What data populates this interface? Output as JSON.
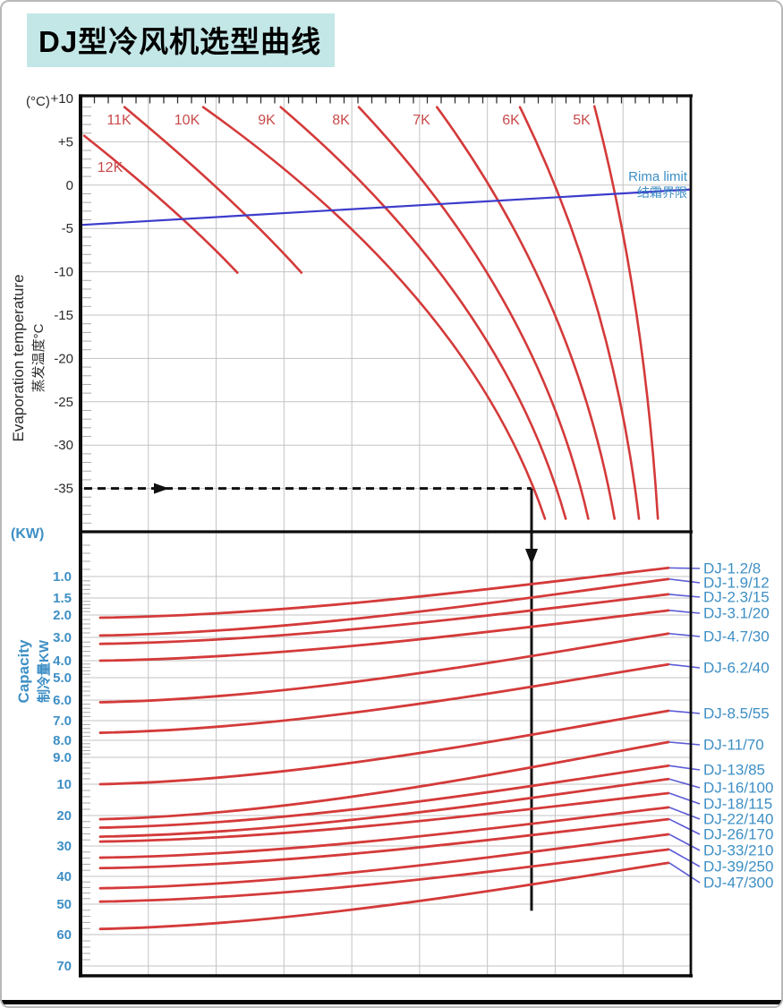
{
  "page": {
    "title": "DJ型冷风机选型曲线"
  },
  "top_chart": {
    "unit_label": "(°C)",
    "axis_label_en": "Evaporation temperature",
    "axis_label_zh": "蒸发温度°C",
    "yticks": [
      "+10",
      "+5",
      "0",
      "-5",
      "-10",
      "-15",
      "-20",
      "-25",
      "-30",
      "-35"
    ],
    "rima_label_en": "Rima limit",
    "rima_label_zh": "结霜界限"
  },
  "bottom_chart": {
    "unit_label": "(KW)",
    "axis_label_en": "Capacity",
    "axis_label_zh": "制冷量KW",
    "yticks": [
      "1.0",
      "1.5",
      "2.0",
      "3.0",
      "4.0",
      "5.0",
      "6.0",
      "7.0",
      "8.0",
      "9.0",
      "10",
      "20",
      "30",
      "40",
      "50",
      "60",
      "70"
    ]
  },
  "colors": {
    "curve_red": "#d43a3a",
    "curve_label_red": "#c84a4a",
    "limit_blue": "#3c3ccc",
    "leader_blue": "#5b5bd6",
    "label_blue": "#3e8fc5",
    "axis_dark": "#2b2b2b",
    "grid_grey": "#c3c3c3",
    "title_bg": "#c3e7e7"
  },
  "chart_data": [
    {
      "panel": "evaporation-temperature",
      "type": "line",
      "ylabel": "Evaporation temperature 蒸发温度°C",
      "yunit": "°C",
      "ylim": [
        -40,
        10
      ],
      "grid": true,
      "dt_curves": [
        {
          "label": "12K",
          "start": {
            "xf": 0.006,
            "temp": 5.7
          },
          "end": {
            "xf": 0.257,
            "temp": -10.1
          }
        },
        {
          "label": "11K",
          "start": {
            "xf": 0.072,
            "temp": 9.0
          },
          "end": {
            "xf": 0.362,
            "temp": -10.1
          }
        },
        {
          "label": "10K",
          "start": {
            "xf": 0.201,
            "temp": 9.0
          },
          "end": {
            "xf": 0.761,
            "temp": -38.5
          }
        },
        {
          "label": "9K",
          "start": {
            "xf": 0.328,
            "temp": 9.0
          },
          "end": {
            "xf": 0.795,
            "temp": -38.5
          }
        },
        {
          "label": "8K",
          "start": {
            "xf": 0.456,
            "temp": 9.0
          },
          "end": {
            "xf": 0.832,
            "temp": -38.5
          }
        },
        {
          "label": "7K",
          "start": {
            "xf": 0.584,
            "temp": 9.0
          },
          "end": {
            "xf": 0.875,
            "temp": -38.5
          }
        },
        {
          "label": "6K",
          "start": {
            "xf": 0.72,
            "temp": 9.0
          },
          "end": {
            "xf": 0.915,
            "temp": -38.5
          }
        },
        {
          "label": "5K",
          "start": {
            "xf": 0.842,
            "temp": 9.1
          },
          "end": {
            "xf": 0.946,
            "temp": -38.5
          }
        }
      ],
      "rima_limit": {
        "start": {
          "xf": 0.0,
          "temp": -4.6
        },
        "end": {
          "xf": 1.0,
          "temp": -0.5
        }
      },
      "selection_arrow": {
        "temp": -35,
        "turn_xf": 0.739
      }
    },
    {
      "panel": "capacity",
      "type": "line",
      "ylabel": "Capacity 制冷量KW",
      "yunit": "KW",
      "ylim": [
        0.8,
        80
      ],
      "yscale": "log-like",
      "grid": true,
      "capacity_curves": [
        {
          "model": "DJ-1.2/8",
          "left_kw": 2.1,
          "right_kw": 0.85
        },
        {
          "model": "DJ-1.9/12",
          "left_kw": 2.9,
          "right_kw": 1.05
        },
        {
          "model": "DJ-2.3/15",
          "left_kw": 3.25,
          "right_kw": 1.4
        },
        {
          "model": "DJ-3.1/20",
          "left_kw": 4.0,
          "right_kw": 1.85
        },
        {
          "model": "DJ-4.7/30",
          "left_kw": 6.1,
          "right_kw": 2.8
        },
        {
          "model": "DJ-6.2/40",
          "left_kw": 7.6,
          "right_kw": 4.2
        },
        {
          "model": "DJ-8.5/55",
          "left_kw": 10.0,
          "right_kw": 6.5
        },
        {
          "model": "DJ-11/70",
          "left_kw": 21.0,
          "right_kw": 8.1
        },
        {
          "model": "DJ-13/85",
          "left_kw": 23.5,
          "right_kw": 9.3
        },
        {
          "model": "DJ-16/100",
          "left_kw": 26.5,
          "right_kw": 9.8
        },
        {
          "model": "DJ-18/115",
          "left_kw": 28.3,
          "right_kw": 12.2
        },
        {
          "model": "DJ-22/140",
          "left_kw": 33.5,
          "right_kw": 16.7
        },
        {
          "model": "DJ-26/170",
          "left_kw": 37.0,
          "right_kw": 21.0
        },
        {
          "model": "DJ-33/210",
          "left_kw": 44.0,
          "right_kw": 25.7
        },
        {
          "model": "DJ-39/250",
          "left_kw": 49.0,
          "right_kw": 31.0
        },
        {
          "model": "DJ-47/300",
          "left_kw": 58.0,
          "right_kw": 35.2
        }
      ],
      "selection_arrow": {
        "down_at_xf": 0.739,
        "end_kw": 52
      }
    }
  ]
}
